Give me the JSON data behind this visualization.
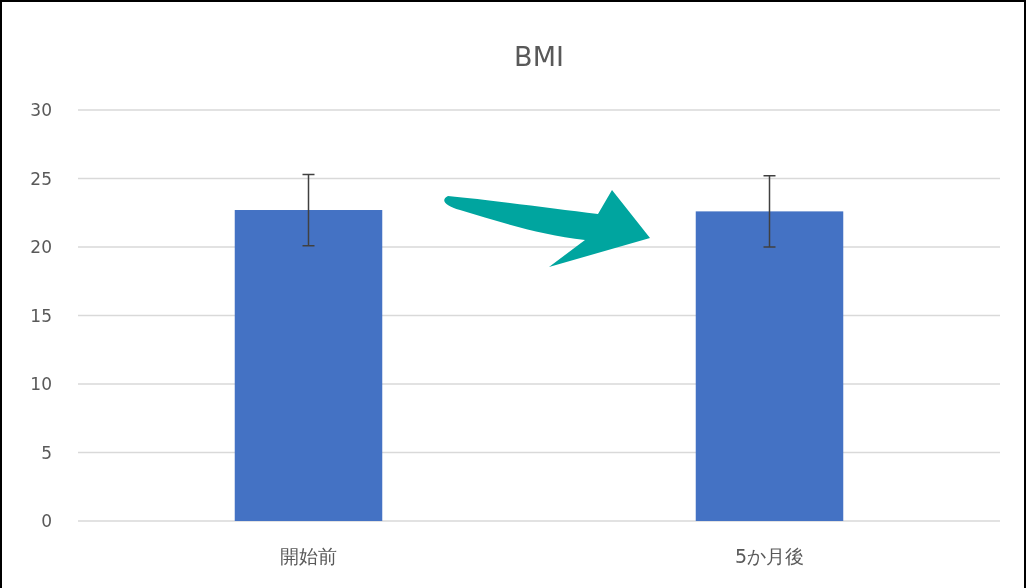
{
  "chart_data": {
    "type": "bar",
    "title": "BMI",
    "categories": [
      "開始前",
      "5か月後"
    ],
    "values": [
      22.7,
      22.6
    ],
    "errors": [
      2.6,
      2.6
    ],
    "color": "#4472c4",
    "ylim": [
      0,
      30
    ],
    "yticks": [
      0,
      5,
      10,
      15,
      20,
      25,
      30
    ],
    "grid": "y"
  }
}
